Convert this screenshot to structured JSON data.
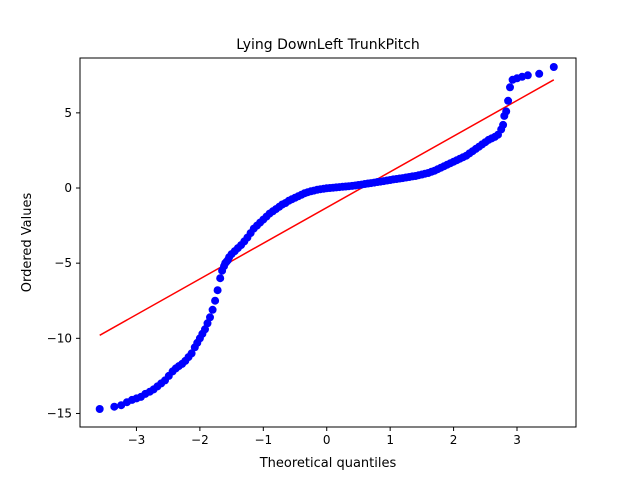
{
  "chart_data": {
    "type": "scatter",
    "title": "Lying DownLeft TrunkPitch",
    "xlabel": "Theoretical quantiles",
    "ylabel": "Ordered Values",
    "xlim": [
      -3.89,
      3.93
    ],
    "ylim": [
      -15.9,
      8.65
    ],
    "x_ticks": [
      -3,
      -2,
      -1,
      0,
      1,
      2,
      3
    ],
    "x_tick_labels": [
      "−3",
      "−2",
      "−1",
      "0",
      "1",
      "2",
      "3"
    ],
    "y_ticks": [
      -15,
      -10,
      -5,
      0,
      5
    ],
    "y_tick_labels": [
      "−15",
      "−10",
      "−5",
      "0",
      "5"
    ],
    "grid": false,
    "legend": "none",
    "colors": {
      "points": "#0000ff",
      "fit_line": "#ff0000",
      "axes": "#000000"
    },
    "series": [
      {
        "kind": "points",
        "x": [
          -3.58,
          -3.35,
          -3.24,
          -3.15,
          -3.07,
          -3.0,
          -2.93,
          -2.86,
          -2.79,
          -2.73,
          -2.67,
          -2.61,
          -2.55,
          -2.49,
          -2.43,
          -2.38,
          -2.33,
          -2.28,
          -2.23,
          -2.18,
          -2.13,
          -2.08,
          -2.04,
          -2.0,
          -1.96,
          -1.92,
          -1.88,
          -1.84,
          -1.8,
          -1.76,
          -1.72,
          -1.68,
          -1.65,
          -1.62,
          -1.6,
          -1.58,
          -1.56,
          -1.54,
          -1.5,
          -1.45,
          -1.4,
          -1.35,
          -1.3,
          -1.25,
          -1.2,
          -1.15,
          -1.1,
          -1.05,
          -1.0,
          -0.95,
          -0.9,
          -0.85,
          -0.8,
          -0.75,
          -0.7,
          -0.65,
          -0.6,
          -0.55,
          -0.5,
          -0.45,
          -0.4,
          -0.35,
          -0.3,
          -0.25,
          -0.2,
          -0.15,
          -0.1,
          -0.05,
          0.0,
          0.05,
          0.1,
          0.15,
          0.2,
          0.25,
          0.3,
          0.35,
          0.4,
          0.45,
          0.5,
          0.55,
          0.6,
          0.65,
          0.7,
          0.75,
          0.8,
          0.85,
          0.9,
          0.95,
          1.0,
          1.05,
          1.1,
          1.15,
          1.2,
          1.25,
          1.3,
          1.35,
          1.4,
          1.45,
          1.5,
          1.55,
          1.6,
          1.65,
          1.7,
          1.75,
          1.8,
          1.85,
          1.9,
          1.95,
          2.0,
          2.05,
          2.1,
          2.15,
          2.2,
          2.25,
          2.3,
          2.35,
          2.4,
          2.45,
          2.5,
          2.55,
          2.6,
          2.65,
          2.7,
          2.75,
          2.78,
          2.8,
          2.83,
          2.86,
          2.89,
          2.93,
          3.0,
          3.08,
          3.17,
          3.35,
          3.58
        ],
        "y": [
          -14.7,
          -14.55,
          -14.45,
          -14.25,
          -14.1,
          -14.0,
          -13.9,
          -13.7,
          -13.55,
          -13.4,
          -13.2,
          -13.0,
          -12.8,
          -12.5,
          -12.2,
          -12.0,
          -11.85,
          -11.7,
          -11.5,
          -11.25,
          -11.0,
          -10.6,
          -10.3,
          -10.0,
          -9.7,
          -9.4,
          -9.0,
          -8.6,
          -8.1,
          -7.5,
          -6.8,
          -6.0,
          -5.5,
          -5.2,
          -5.0,
          -4.9,
          -4.8,
          -4.6,
          -4.4,
          -4.2,
          -4.0,
          -3.8,
          -3.55,
          -3.3,
          -3.0,
          -2.7,
          -2.5,
          -2.3,
          -2.1,
          -1.9,
          -1.7,
          -1.55,
          -1.4,
          -1.25,
          -1.1,
          -1.0,
          -0.85,
          -0.75,
          -0.65,
          -0.55,
          -0.45,
          -0.35,
          -0.28,
          -0.22,
          -0.17,
          -0.12,
          -0.08,
          -0.05,
          -0.02,
          0.0,
          0.02,
          0.04,
          0.06,
          0.08,
          0.1,
          0.12,
          0.14,
          0.17,
          0.2,
          0.23,
          0.27,
          0.3,
          0.33,
          0.36,
          0.4,
          0.43,
          0.46,
          0.5,
          0.53,
          0.57,
          0.6,
          0.63,
          0.66,
          0.7,
          0.73,
          0.77,
          0.8,
          0.85,
          0.9,
          0.95,
          1.0,
          1.08,
          1.15,
          1.25,
          1.35,
          1.45,
          1.55,
          1.65,
          1.75,
          1.85,
          1.95,
          2.05,
          2.15,
          2.3,
          2.45,
          2.6,
          2.75,
          2.9,
          3.05,
          3.2,
          3.3,
          3.4,
          3.55,
          3.9,
          4.2,
          4.8,
          5.1,
          5.8,
          6.7,
          7.2,
          7.3,
          7.4,
          7.5,
          7.6,
          8.05
        ]
      },
      {
        "kind": "line",
        "x": [
          -3.58,
          3.58
        ],
        "y": [
          -9.8,
          7.2
        ]
      }
    ]
  }
}
